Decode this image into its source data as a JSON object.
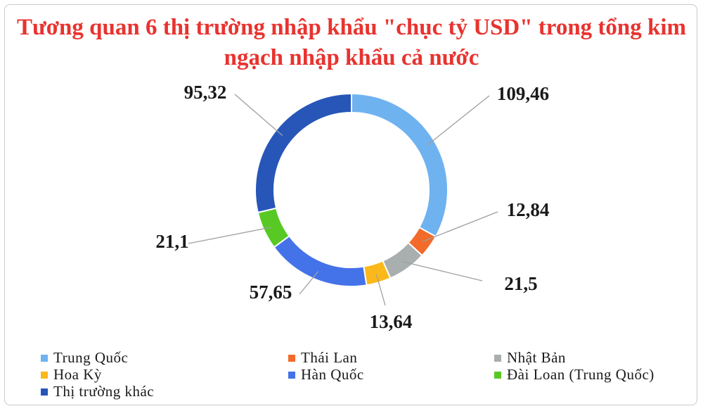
{
  "title": {
    "line1": "Tương quan 6 thị trường nhập khẩu \"chục tỷ USD\" trong tổng kim",
    "line2": "ngạch nhập khẩu cả nước"
  },
  "chart_data": {
    "type": "pie",
    "variant": "donut",
    "title": "Tương quan 6 thị trường nhập khẩu \"chục tỷ USD\" trong tổng kim ngạch nhập khẩu cả nước",
    "categories": [
      "Trung  Quốc",
      "Thái Lan",
      "Nhật Bản",
      "Hoa Kỳ",
      "Hàn Quốc",
      "Đài Loan (Trung  Quốc)",
      "Thị trường khác"
    ],
    "values": [
      109.46,
      12.84,
      21.5,
      13.64,
      57.65,
      21.1,
      95.32
    ],
    "value_labels": [
      "109,46",
      "12,84",
      "21,5",
      "13,64",
      "57,65",
      "21,1",
      "95,32"
    ],
    "colors": [
      "#6fb2f0",
      "#f26b2a",
      "#a9aeae",
      "#fbb81a",
      "#4472e8",
      "#58c924",
      "#2756b8"
    ],
    "legend_position": "bottom"
  }
}
